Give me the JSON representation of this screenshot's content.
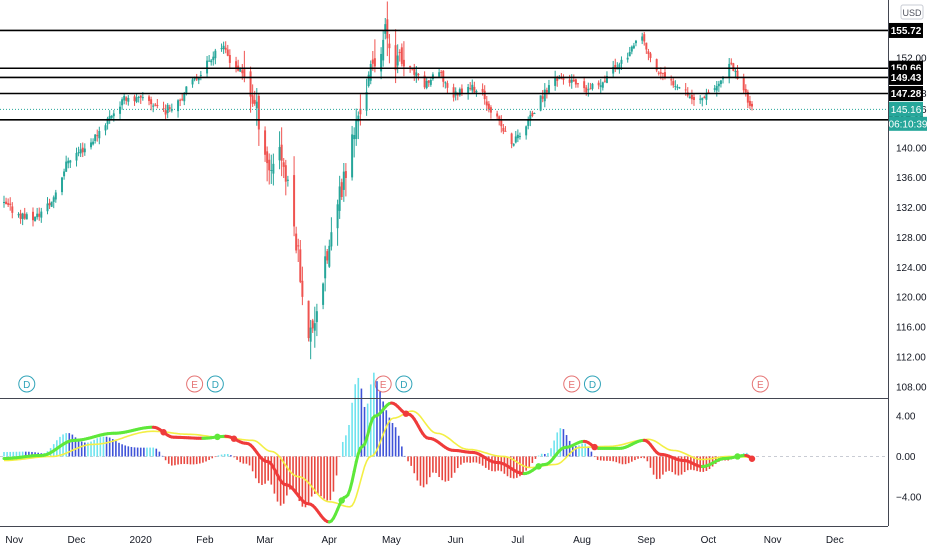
{
  "chart_data": [
    {
      "type": "candlestick",
      "currency_label": "USD",
      "y_ticks": [
        "152.00",
        "147.28",
        "145.16",
        "140.00",
        "136.00",
        "132.00",
        "128.00",
        "124.00",
        "120.00",
        "116.00",
        "112.00",
        "108.00"
      ],
      "ylim": [
        106.5,
        159.8
      ],
      "horizontal_levels": [
        155.72,
        150.66,
        149.43,
        147.28,
        143.76
      ],
      "level_labels": [
        "155.72",
        "150.66",
        "149.43",
        "147.28",
        "143.76"
      ],
      "last_price": 145.16,
      "last_price_label": "145.16",
      "countdown_label": "06:10:39",
      "x_labels": [
        "Nov",
        "Dec",
        "2020",
        "Feb",
        "Mar",
        "Apr",
        "May",
        "Jun",
        "Jul",
        "Aug",
        "Sep",
        "Oct",
        "Nov",
        "Dec"
      ],
      "events": [
        {
          "date": "2019-11-08",
          "letter": "D",
          "kind": "dividend"
        },
        {
          "date": "2020-01-28",
          "letter": "E",
          "kind": "earnings"
        },
        {
          "date": "2020-02-07",
          "letter": "D",
          "kind": "dividend"
        },
        {
          "date": "2020-04-28",
          "letter": "E",
          "kind": "earnings"
        },
        {
          "date": "2020-05-08",
          "letter": "D",
          "kind": "dividend"
        },
        {
          "date": "2020-07-28",
          "letter": "E",
          "kind": "earnings"
        },
        {
          "date": "2020-08-07",
          "letter": "D",
          "kind": "dividend"
        },
        {
          "date": "2020-10-27",
          "letter": "E",
          "kind": "earnings"
        }
      ],
      "price_path": [
        [
          "2019-10-28",
          132.4
        ],
        [
          "2019-11-05",
          131.0
        ],
        [
          "2019-11-12",
          130.6
        ],
        [
          "2019-11-20",
          132.8
        ],
        [
          "2019-11-28",
          138.5
        ],
        [
          "2019-12-08",
          140.4
        ],
        [
          "2019-12-18",
          144.2
        ],
        [
          "2019-12-26",
          146.8
        ],
        [
          "2020-01-06",
          146.2
        ],
        [
          "2020-01-14",
          145.0
        ],
        [
          "2020-01-22",
          147.0
        ],
        [
          "2020-01-30",
          149.8
        ],
        [
          "2020-02-05",
          152.2
        ],
        [
          "2020-02-09",
          154.0
        ],
        [
          "2020-02-15",
          151.5
        ],
        [
          "2020-02-22",
          149.2
        ],
        [
          "2020-02-28",
          144.0
        ],
        [
          "2020-03-04",
          137.0
        ],
        [
          "2020-03-09",
          140.5
        ],
        [
          "2020-03-14",
          133.0
        ],
        [
          "2020-03-18",
          126.0
        ],
        [
          "2020-03-23",
          114.0
        ],
        [
          "2020-03-28",
          120.0
        ],
        [
          "2020-04-03",
          128.0
        ],
        [
          "2020-04-09",
          136.0
        ],
        [
          "2020-04-16",
          144.5
        ],
        [
          "2020-04-22",
          150.0
        ],
        [
          "2020-04-29",
          155.5
        ],
        [
          "2020-05-04",
          152.0
        ],
        [
          "2020-05-11",
          150.5
        ],
        [
          "2020-05-18",
          148.5
        ],
        [
          "2020-05-25",
          150.0
        ],
        [
          "2020-06-01",
          147.0
        ],
        [
          "2020-06-08",
          148.5
        ],
        [
          "2020-06-15",
          147.0
        ],
        [
          "2020-06-22",
          143.8
        ],
        [
          "2020-06-29",
          140.5
        ],
        [
          "2020-07-06",
          143.0
        ],
        [
          "2020-07-13",
          146.5
        ],
        [
          "2020-07-20",
          149.5
        ],
        [
          "2020-07-27",
          149.0
        ],
        [
          "2020-08-03",
          147.5
        ],
        [
          "2020-08-10",
          148.5
        ],
        [
          "2020-08-17",
          150.5
        ],
        [
          "2020-08-24",
          152.5
        ],
        [
          "2020-08-31",
          154.8
        ],
        [
          "2020-09-05",
          151.0
        ],
        [
          "2020-09-12",
          149.0
        ],
        [
          "2020-09-19",
          148.5
        ],
        [
          "2020-09-26",
          146.0
        ],
        [
          "2020-10-03",
          148.0
        ],
        [
          "2020-10-08",
          148.5
        ],
        [
          "2020-10-12",
          151.5
        ],
        [
          "2020-10-18",
          148.6
        ],
        [
          "2020-10-23",
          145.16
        ]
      ],
      "oscillator": {
        "y_ticks": [
          "4.00",
          "0.00",
          "−4.00"
        ],
        "ylim": [
          -6.9,
          5.6
        ],
        "fast_line": [
          [
            "2019-10-28",
            -0.2
          ],
          [
            "2019-11-15",
            0.1
          ],
          [
            "2019-12-01",
            1.6
          ],
          [
            "2019-12-20",
            2.3
          ],
          [
            "2020-01-08",
            2.9
          ],
          [
            "2020-01-18",
            1.9
          ],
          [
            "2020-02-01",
            1.8
          ],
          [
            "2020-02-12",
            2.0
          ],
          [
            "2020-02-22",
            1.3
          ],
          [
            "2020-03-03",
            -0.5
          ],
          [
            "2020-03-12",
            -2.8
          ],
          [
            "2020-03-23",
            -4.7
          ],
          [
            "2020-04-02",
            -6.5
          ],
          [
            "2020-04-10",
            -4.0
          ],
          [
            "2020-04-18",
            1.0
          ],
          [
            "2020-04-24",
            4.0
          ],
          [
            "2020-05-02",
            5.3
          ],
          [
            "2020-05-10",
            4.2
          ],
          [
            "2020-05-20",
            1.8
          ],
          [
            "2020-06-01",
            0.6
          ],
          [
            "2020-06-10",
            0.4
          ],
          [
            "2020-06-22",
            -0.6
          ],
          [
            "2020-07-05",
            -1.7
          ],
          [
            "2020-07-15",
            -0.8
          ],
          [
            "2020-07-25",
            0.9
          ],
          [
            "2020-08-03",
            1.5
          ],
          [
            "2020-08-10",
            0.8
          ],
          [
            "2020-08-20",
            0.8
          ],
          [
            "2020-09-01",
            1.6
          ],
          [
            "2020-09-09",
            0.2
          ],
          [
            "2020-09-20",
            -0.4
          ],
          [
            "2020-09-29",
            -1.0
          ],
          [
            "2020-10-10",
            -0.2
          ],
          [
            "2020-10-20",
            0.1
          ],
          [
            "2020-10-25",
            -0.4
          ]
        ],
        "slow_line": [
          [
            "2019-10-28",
            -0.4
          ],
          [
            "2019-11-20",
            0.0
          ],
          [
            "2019-12-10",
            1.2
          ],
          [
            "2020-01-08",
            2.5
          ],
          [
            "2020-01-25",
            2.2
          ],
          [
            "2020-02-10",
            1.9
          ],
          [
            "2020-02-25",
            1.6
          ],
          [
            "2020-03-05",
            0.5
          ],
          [
            "2020-03-18",
            -2.0
          ],
          [
            "2020-04-02",
            -4.5
          ],
          [
            "2020-04-12",
            -5.0
          ],
          [
            "2020-04-22",
            0.0
          ],
          [
            "2020-05-03",
            3.8
          ],
          [
            "2020-05-12",
            4.5
          ],
          [
            "2020-05-24",
            2.3
          ],
          [
            "2020-06-08",
            0.7
          ],
          [
            "2020-06-25",
            0.0
          ],
          [
            "2020-07-08",
            -1.1
          ],
          [
            "2020-07-20",
            -0.8
          ],
          [
            "2020-08-01",
            0.9
          ],
          [
            "2020-08-15",
            1.0
          ],
          [
            "2020-09-03",
            1.7
          ],
          [
            "2020-09-15",
            0.6
          ],
          [
            "2020-09-29",
            -0.3
          ],
          [
            "2020-10-12",
            0.0
          ],
          [
            "2020-10-25",
            -0.1
          ]
        ],
        "histogram_color_up_strong": "#6fe3ee",
        "histogram_color_up_weak": "#3f53d8",
        "histogram_color_down": "#e8473f"
      },
      "colors": {
        "up": "#26a69a",
        "down": "#ef5350",
        "level_line": "#000000",
        "last_price_line": "#26a69a",
        "fast_line_up": "#5ee83a",
        "fast_line_down": "#ef3b3b",
        "slow_line": "#f3ef45",
        "dividend_marker": "#2fa3b8",
        "earnings_marker": "#e57373"
      }
    }
  ]
}
